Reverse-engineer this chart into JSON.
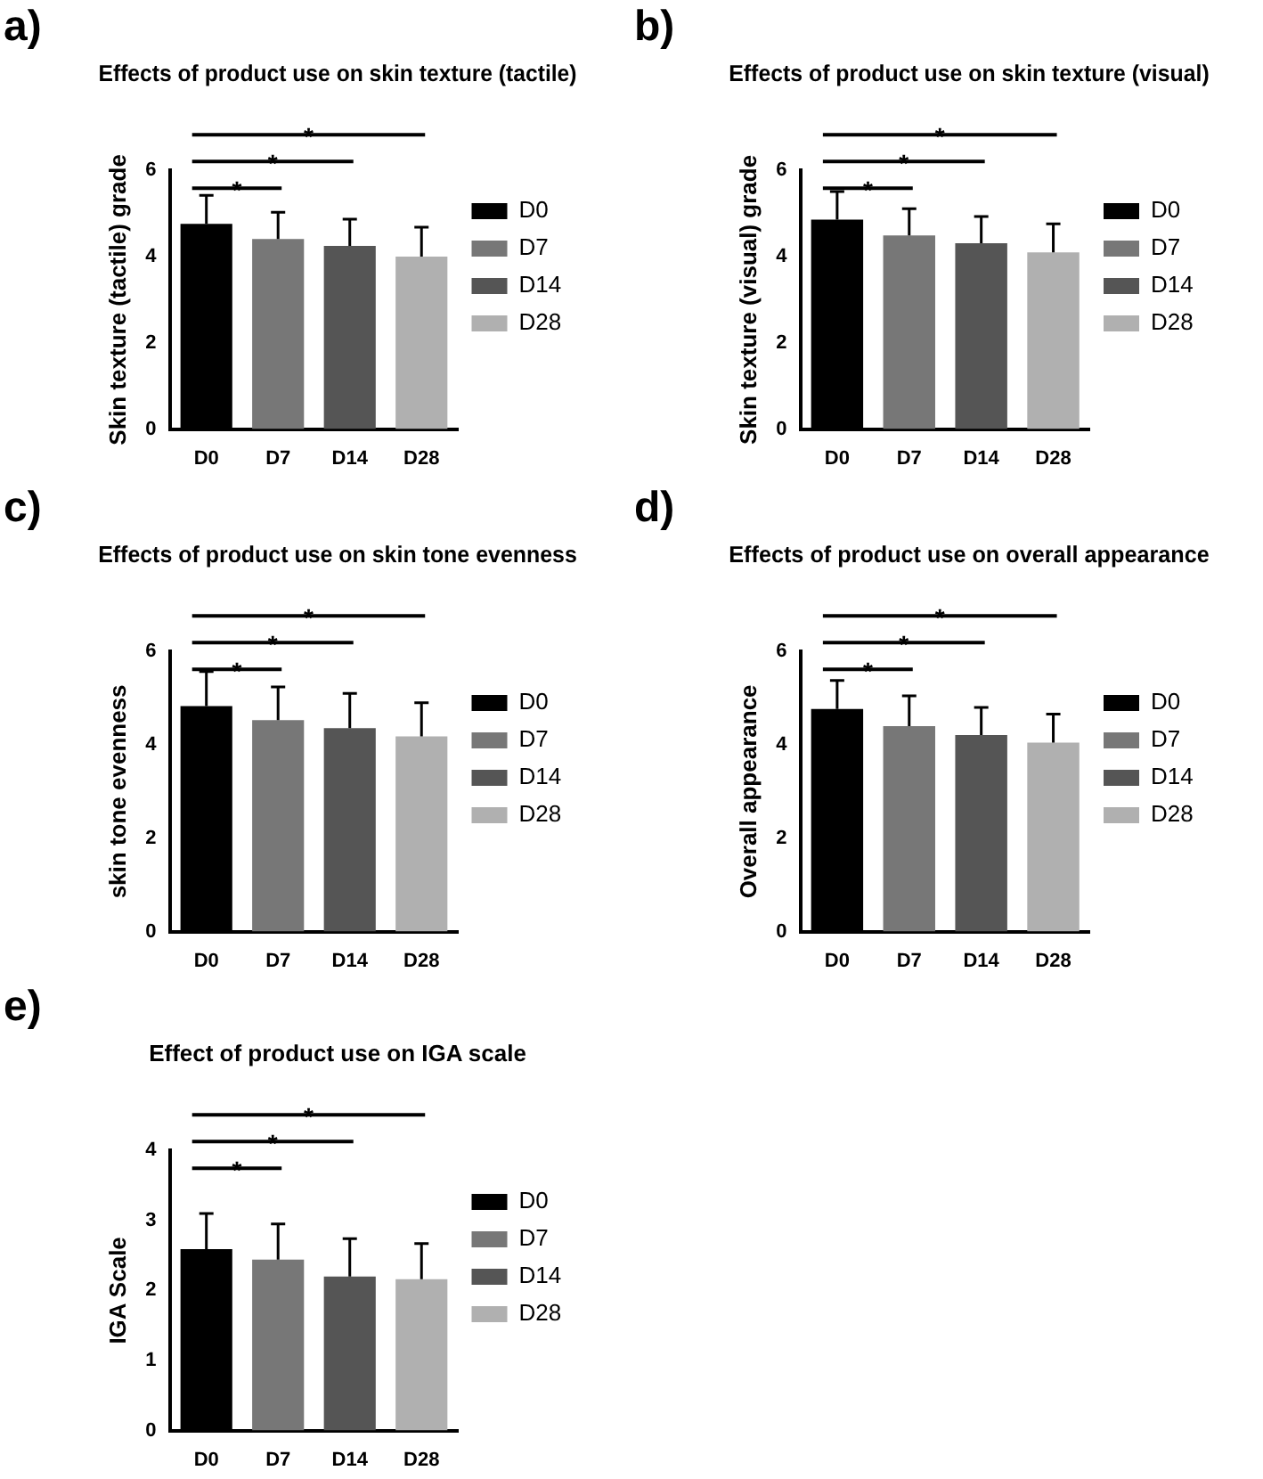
{
  "chart_data": [
    {
      "type": "bar",
      "title": "Effects of product use on skin texture (tactile)",
      "ylabel": "Skin texture (tactile) grade",
      "categories": [
        "D0",
        "D7",
        "D14",
        "D28"
      ],
      "series": [
        {
          "name": "D0",
          "color": "#000000",
          "values": [
            4.76,
            null,
            null,
            null
          ],
          "errors": [
            [
              4.76,
              5.42
            ],
            null,
            null,
            null
          ]
        },
        {
          "name": "D7",
          "color": "#777777",
          "values": [
            null,
            4.41,
            null,
            null
          ],
          "errors": [
            null,
            [
              4.41,
              5.03
            ],
            null,
            null
          ]
        },
        {
          "name": "D14",
          "color": "#555555",
          "values": [
            null,
            null,
            4.25,
            null
          ],
          "errors": [
            null,
            null,
            [
              4.25,
              4.87
            ],
            null
          ]
        },
        {
          "name": "D28",
          "color": "#b0b0b0",
          "values": [
            null,
            null,
            null,
            4.0
          ],
          "errors": [
            null,
            null,
            null,
            [
              4.0,
              4.68
            ]
          ]
        }
      ],
      "ylim": [
        0,
        6
      ],
      "yticks": [
        0,
        2,
        4,
        6
      ],
      "legend": "right",
      "annotations": [
        "a)",
        "*",
        "*",
        "*"
      ]
    },
    {
      "type": "bar",
      "title": "Effects of product use on skin texture (visual)",
      "ylabel": "Skin texture (visual) grade",
      "categories": [
        "D0",
        "D7",
        "D14",
        "D28"
      ],
      "series": [
        {
          "name": "D0",
          "color": "#000000",
          "values": [
            4.86,
            null,
            null,
            null
          ],
          "errors": [
            [
              4.86,
              5.51
            ],
            null,
            null,
            null
          ]
        },
        {
          "name": "D7",
          "color": "#777777",
          "values": [
            null,
            4.49,
            null,
            null
          ],
          "errors": [
            null,
            [
              4.49,
              5.11
            ],
            null,
            null
          ]
        },
        {
          "name": "D14",
          "color": "#555555",
          "values": [
            null,
            null,
            4.31,
            null
          ],
          "errors": [
            null,
            null,
            [
              4.31,
              4.93
            ],
            null
          ]
        },
        {
          "name": "D28",
          "color": "#b0b0b0",
          "values": [
            null,
            null,
            null,
            4.1
          ],
          "errors": [
            null,
            null,
            null,
            [
              4.1,
              4.76
            ]
          ]
        }
      ],
      "ylim": [
        0,
        6
      ],
      "yticks": [
        0,
        2,
        4,
        6
      ],
      "legend": "right",
      "annotations": [
        "b)",
        "*",
        "*",
        "*"
      ]
    },
    {
      "type": "bar",
      "title": "Effects of product use on skin tone evenness",
      "ylabel": "skin tone evenness",
      "categories": [
        "D0",
        "D7",
        "D14",
        "D28"
      ],
      "series": [
        {
          "name": "D0",
          "color": "#000000",
          "values": [
            4.83,
            null,
            null,
            null
          ],
          "errors": [
            [
              4.83,
              5.57
            ],
            null,
            null,
            null
          ]
        },
        {
          "name": "D7",
          "color": "#777777",
          "values": [
            null,
            4.53,
            null,
            null
          ],
          "errors": [
            null,
            [
              4.53,
              5.24
            ],
            null,
            null
          ]
        },
        {
          "name": "D14",
          "color": "#555555",
          "values": [
            null,
            null,
            4.36,
            null
          ],
          "errors": [
            null,
            null,
            [
              4.36,
              5.1
            ],
            null
          ]
        },
        {
          "name": "D28",
          "color": "#b0b0b0",
          "values": [
            null,
            null,
            null,
            4.18
          ],
          "errors": [
            null,
            null,
            null,
            [
              4.18,
              4.9
            ]
          ]
        }
      ],
      "ylim": [
        0,
        6
      ],
      "yticks": [
        0,
        2,
        4,
        6
      ],
      "legend": "right",
      "annotations": [
        "c)",
        "*",
        "*",
        "*"
      ]
    },
    {
      "type": "bar",
      "title": "Effects of product use on overall appearance",
      "ylabel": "Overall appearance",
      "categories": [
        "D0",
        "D7",
        "D14",
        "D28"
      ],
      "series": [
        {
          "name": "D0",
          "color": "#000000",
          "values": [
            4.77,
            null,
            null,
            null
          ],
          "errors": [
            [
              4.77,
              5.38
            ],
            null,
            null,
            null
          ]
        },
        {
          "name": "D7",
          "color": "#777777",
          "values": [
            null,
            4.4,
            null,
            null
          ],
          "errors": [
            null,
            [
              4.4,
              5.05
            ],
            null,
            null
          ]
        },
        {
          "name": "D14",
          "color": "#555555",
          "values": [
            null,
            null,
            4.21,
            null
          ],
          "errors": [
            null,
            null,
            [
              4.21,
              4.8
            ],
            null
          ]
        },
        {
          "name": "D28",
          "color": "#b0b0b0",
          "values": [
            null,
            null,
            null,
            4.05
          ],
          "errors": [
            null,
            null,
            null,
            [
              4.05,
              4.66
            ]
          ]
        }
      ],
      "ylim": [
        0,
        6
      ],
      "yticks": [
        0,
        2,
        4,
        6
      ],
      "legend": "right",
      "annotations": [
        "d)",
        "*",
        "*",
        "*"
      ]
    },
    {
      "type": "bar",
      "title": "Effect of product use on IGA scale",
      "ylabel": "IGA Scale",
      "categories": [
        "D0",
        "D7",
        "D14",
        "D28"
      ],
      "series": [
        {
          "name": "D0",
          "color": "#000000",
          "values": [
            2.59,
            null,
            null,
            null
          ],
          "errors": [
            [
              2.59,
              3.1
            ],
            null,
            null,
            null
          ]
        },
        {
          "name": "D7",
          "color": "#777777",
          "values": [
            null,
            2.44,
            null,
            null
          ],
          "errors": [
            null,
            [
              2.44,
              2.95
            ],
            null,
            null
          ]
        },
        {
          "name": "D14",
          "color": "#555555",
          "values": [
            null,
            null,
            2.2,
            null
          ],
          "errors": [
            null,
            null,
            [
              2.2,
              2.74
            ],
            null
          ]
        },
        {
          "name": "D28",
          "color": "#b0b0b0",
          "values": [
            null,
            null,
            null,
            2.16
          ],
          "errors": [
            null,
            null,
            null,
            [
              2.16,
              2.67
            ]
          ]
        }
      ],
      "ylim": [
        0,
        4
      ],
      "yticks": [
        0,
        1,
        2,
        3,
        4
      ],
      "legend": "right",
      "annotations": [
        "e)",
        "*",
        "*",
        "*"
      ]
    }
  ]
}
